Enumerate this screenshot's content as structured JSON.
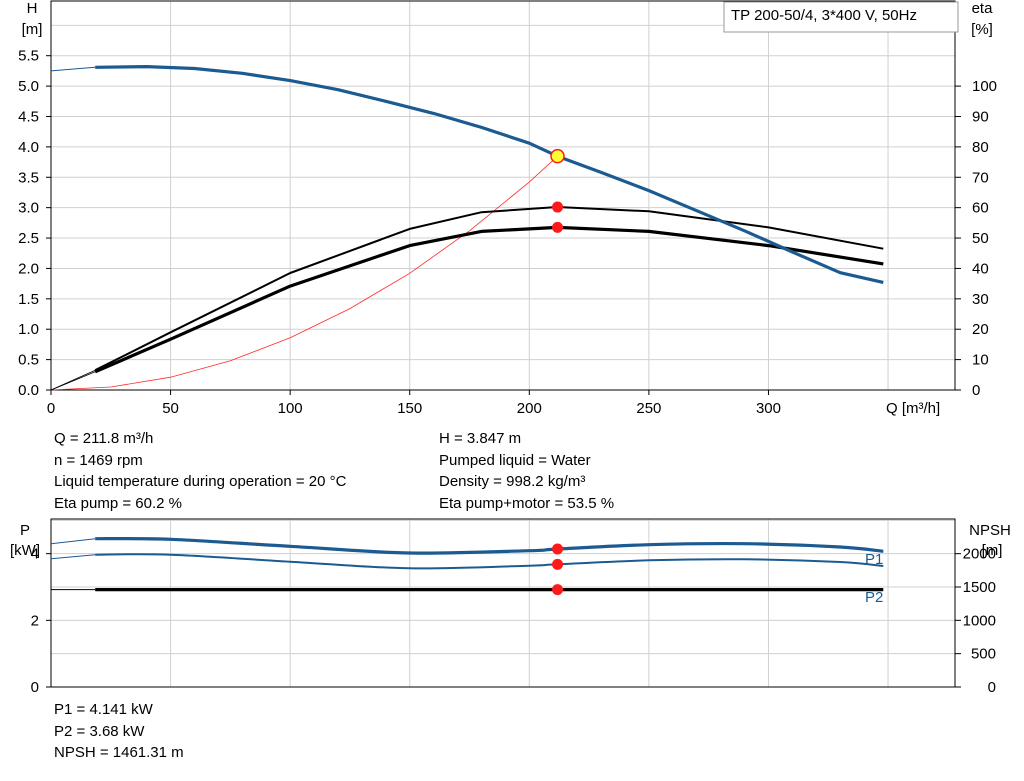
{
  "colors": {
    "head_curve": "#1c5a92",
    "power_curve": "#1c5a92",
    "efficiency_curve": "#000000",
    "system_curve": "#ff2a2a",
    "duty_point": "#ff1a1a",
    "duty_point_highlight": "#ffff33",
    "grid": "#d0d0d0"
  },
  "chart_data": [
    {
      "type": "line",
      "title": "TP 200-50/4, 3*400 V, 50Hz",
      "xlabel": "Q [m³/h]",
      "ylabel_left": [
        "H",
        "[m]"
      ],
      "ylabel_right": [
        "eta",
        "[%]"
      ],
      "xlim": [
        0,
        378
      ],
      "ylim_left": [
        0,
        6.4
      ],
      "ylim_right": [
        0,
        128
      ],
      "x_ticks": [
        0,
        50,
        100,
        150,
        200,
        250,
        300
      ],
      "y_ticks_left": [
        "0.0",
        "0.5",
        "1.0",
        "1.5",
        "2.0",
        "2.5",
        "3.0",
        "3.5",
        "4.0",
        "4.5",
        "5.0",
        "5.5"
      ],
      "y_ticks_right": [
        "0",
        "10",
        "20",
        "30",
        "40",
        "50",
        "60",
        "70",
        "80",
        "90",
        "100"
      ],
      "grid": true,
      "series": [
        {
          "axis": "left",
          "x": [
            0,
            18.5,
            40,
            60,
            80,
            100,
            120,
            140,
            160,
            180,
            200,
            211.8,
            230,
            250,
            270,
            290,
            310,
            330,
            348
          ],
          "values": [
            5.25,
            5.31,
            5.32,
            5.29,
            5.21,
            5.09,
            4.94,
            4.75,
            4.55,
            4.32,
            4.06,
            3.847,
            3.58,
            3.28,
            2.95,
            2.62,
            2.27,
            1.93,
            1.77
          ]
        },
        {
          "axis": "right",
          "x": [
            0,
            18.5,
            50,
            100,
            150,
            180,
            211.8,
            250,
            300,
            348
          ],
          "values": [
            0,
            6.5,
            19.0,
            38.5,
            53.0,
            58.5,
            60.2,
            58.8,
            53.5,
            46.5
          ]
        },
        {
          "axis": "right",
          "x": [
            0,
            18.5,
            50,
            100,
            150,
            180,
            211.8,
            250,
            300,
            348
          ],
          "values": [
            0,
            6.0,
            16.7,
            34.2,
            47.5,
            52.2,
            53.5,
            52.2,
            47.5,
            41.5
          ]
        },
        {
          "axis": "left",
          "x": [
            0,
            25,
            50,
            75,
            100,
            125,
            150,
            175,
            200,
            211.8
          ],
          "values": [
            0,
            0.05,
            0.21,
            0.48,
            0.86,
            1.34,
            1.92,
            2.62,
            3.42,
            3.847
          ]
        }
      ],
      "duty_points": [
        {
          "x": 211.8,
          "y": 3.847,
          "axis": "left",
          "highlight": true
        },
        {
          "x": 211.8,
          "y": 60.2,
          "axis": "right"
        },
        {
          "x": 211.8,
          "y": 53.5,
          "axis": "right"
        }
      ]
    },
    {
      "type": "line",
      "xlim": [
        0,
        378
      ],
      "ylabel_left": [
        "P",
        "[kW]"
      ],
      "ylabel_right": [
        "NPSH",
        "[m]"
      ],
      "ylim_left": [
        0,
        5.04
      ],
      "ylim_right": [
        0,
        2520
      ],
      "y_ticks_left": [
        "0",
        "2",
        "4"
      ],
      "y_ticks_right": [
        "0",
        "500",
        "1000",
        "1500",
        "2000"
      ],
      "grid": true,
      "series": [
        {
          "name": "P1",
          "axis": "left",
          "x": [
            18.5,
            50,
            100,
            150,
            200,
            211.8,
            250,
            290,
            330,
            348
          ],
          "values": [
            4.45,
            4.43,
            4.22,
            4.02,
            4.09,
            4.141,
            4.27,
            4.3,
            4.2,
            4.07
          ]
        },
        {
          "name": "P2",
          "axis": "left",
          "x": [
            18.5,
            50,
            100,
            150,
            200,
            211.8,
            250,
            290,
            330,
            348
          ],
          "values": [
            3.97,
            3.97,
            3.76,
            3.56,
            3.64,
            3.68,
            3.8,
            3.83,
            3.75,
            3.63
          ]
        },
        {
          "axis": "right",
          "x": [
            18.5,
            100,
            200,
            211.8,
            300,
            348
          ],
          "values": [
            1461,
            1461,
            1461,
            1461.31,
            1461,
            1461
          ]
        }
      ],
      "duty_points": [
        {
          "x": 211.8,
          "y": 4.141,
          "axis": "left"
        },
        {
          "x": 211.8,
          "y": 3.68,
          "axis": "left"
        },
        {
          "x": 211.8,
          "y": 1461.31,
          "axis": "right"
        }
      ]
    }
  ],
  "info_left": [
    "Q = 211.8 m³/h",
    "n = 1469 rpm",
    "Liquid temperature during operation = 20 °C",
    "Eta pump = 60.2 %"
  ],
  "info_right": [
    "H = 3.847 m",
    "Pumped liquid = Water",
    "Density = 998.2 kg/m³",
    "Eta pump+motor = 53.5 %"
  ],
  "info_bottom": [
    "P1 = 4.141 kW",
    "P2 = 3.68 kW",
    "NPSH = 1461.31 m"
  ]
}
